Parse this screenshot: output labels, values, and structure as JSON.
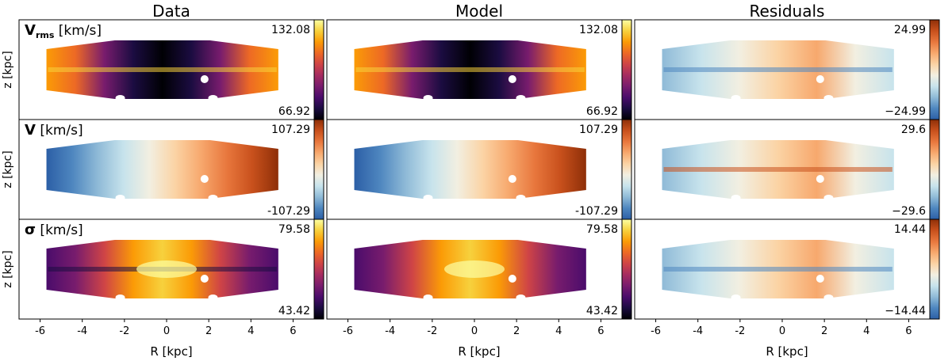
{
  "chart_data": {
    "type": "heatmap",
    "title": "",
    "columns": [
      {
        "id": "data",
        "title": "Data"
      },
      {
        "id": "model",
        "title": "Model"
      },
      {
        "id": "residuals",
        "title": "Residuals"
      }
    ],
    "rows": [
      {
        "id": "vrms",
        "label_main": "V",
        "label_sub": "rms",
        "label_unit": " [km/s]",
        "colormap": "inferno",
        "panels": [
          {
            "column": "data",
            "vmin_label": "66.92",
            "vmax_label": "132.08",
            "vmin": 66.92,
            "vmax": 132.08
          },
          {
            "column": "model",
            "vmin_label": "66.92",
            "vmax_label": "132.08",
            "vmin": 66.92,
            "vmax": 132.08
          },
          {
            "column": "residuals",
            "vmin_label": "−24.99",
            "vmax_label": "24.99",
            "vmin": -24.99,
            "vmax": 24.99,
            "colormap": "RdYlBu_r"
          }
        ]
      },
      {
        "id": "v",
        "label_main": "V",
        "label_sub": "",
        "label_unit": " [km/s]",
        "colormap": "RdYlBu_r",
        "panels": [
          {
            "column": "data",
            "vmin_label": "-107.29",
            "vmax_label": "107.29",
            "vmin": -107.29,
            "vmax": 107.29
          },
          {
            "column": "model",
            "vmin_label": "-107.29",
            "vmax_label": "107.29",
            "vmin": -107.29,
            "vmax": 107.29
          },
          {
            "column": "residuals",
            "vmin_label": "−29.6",
            "vmax_label": "29.6",
            "vmin": -29.6,
            "vmax": 29.6
          }
        ]
      },
      {
        "id": "sigma",
        "label_main": "σ",
        "label_sub": "",
        "label_unit": " [km/s]",
        "colormap": "inferno",
        "panels": [
          {
            "column": "data",
            "vmin_label": "43.42",
            "vmax_label": "79.58",
            "vmin": 43.42,
            "vmax": 79.58
          },
          {
            "column": "model",
            "vmin_label": "43.42",
            "vmax_label": "79.58",
            "vmin": 43.42,
            "vmax": 79.58
          },
          {
            "column": "residuals",
            "vmin_label": "−14.44",
            "vmax_label": "14.44",
            "vmin": -14.44,
            "vmax": 14.44,
            "colormap": "RdYlBu_r"
          }
        ]
      }
    ],
    "ylabel": "z [kpc]",
    "xlabel": "R [kpc]",
    "xlim": [
      -7,
      7
    ],
    "xticks": [
      -6,
      -4,
      -2,
      0,
      2,
      4,
      6
    ],
    "xtick_labels": [
      "-6",
      "-4",
      "-2",
      "0",
      "2",
      "4",
      "6"
    ],
    "disk_extent_R": [
      -5.7,
      5.3
    ]
  },
  "colors": {
    "inferno": [
      "#000004",
      "#1b0c41",
      "#4a0c6b",
      "#781c6d",
      "#a52c60",
      "#cf4446",
      "#ed6925",
      "#fb9b06",
      "#f7d13d",
      "#fcffa4"
    ],
    "rdylbu_r": [
      "#2c5fa6",
      "#4e86bf",
      "#8fbad7",
      "#c7e3ec",
      "#f2efe1",
      "#fbd3a4",
      "#f7a86d",
      "#e8773d",
      "#c8501c",
      "#8e2f08"
    ],
    "frame": "#000000",
    "mask": "#ffffff"
  }
}
